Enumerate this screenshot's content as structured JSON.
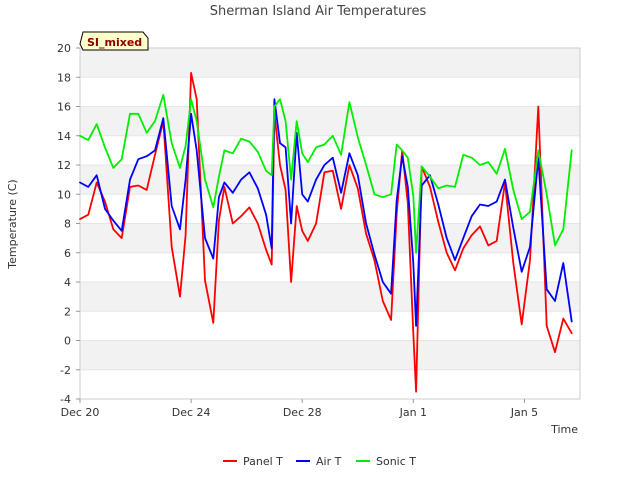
{
  "chart_data": {
    "type": "line",
    "title": "Sherman Island Air Temperatures",
    "xlabel": "Time",
    "ylabel": "Temperature (C)",
    "site_label": "SI_mixed",
    "ylim": [
      -4,
      20
    ],
    "y_ticks": [
      -4,
      -2,
      0,
      2,
      4,
      6,
      8,
      10,
      12,
      14,
      16,
      18,
      20
    ],
    "x_ticks": [
      {
        "label": "Dec 20",
        "day": 0
      },
      {
        "label": "Dec 24",
        "day": 4
      },
      {
        "label": "Dec 28",
        "day": 8
      },
      {
        "label": "Jan 1",
        "day": 12
      },
      {
        "label": "Jan 5",
        "day": 16
      }
    ],
    "xlim_days": [
      0,
      18
    ],
    "band_color": "#f2f2f2",
    "series": [
      {
        "name": "Panel T",
        "color": "#ff0000",
        "x": [
          0.0,
          0.3,
          0.6,
          0.9,
          1.2,
          1.5,
          1.8,
          2.1,
          2.4,
          2.7,
          3.0,
          3.3,
          3.6,
          3.8,
          4.0,
          4.2,
          4.5,
          4.8,
          5.0,
          5.2,
          5.5,
          5.8,
          6.1,
          6.4,
          6.7,
          6.9,
          7.0,
          7.2,
          7.4,
          7.6,
          7.8,
          8.0,
          8.2,
          8.5,
          8.8,
          9.1,
          9.4,
          9.7,
          10.0,
          10.3,
          10.6,
          10.9,
          11.2,
          11.4,
          11.6,
          11.8,
          12.0,
          12.1,
          12.3,
          12.6,
          12.9,
          13.2,
          13.5,
          13.8,
          14.1,
          14.4,
          14.7,
          15.0,
          15.3,
          15.6,
          15.9,
          16.2,
          16.5,
          16.8,
          17.1,
          17.4,
          17.7
        ],
        "y": [
          8.3,
          8.6,
          10.8,
          9.5,
          7.6,
          7.0,
          10.5,
          10.6,
          10.3,
          12.7,
          15.0,
          6.4,
          3.0,
          7.2,
          18.3,
          16.5,
          4.1,
          1.2,
          8.2,
          10.5,
          8.0,
          8.5,
          9.1,
          8.0,
          6.2,
          5.2,
          15.5,
          12.0,
          10.3,
          4.0,
          9.2,
          7.5,
          6.8,
          8.0,
          11.5,
          11.6,
          9.0,
          12.0,
          10.4,
          7.3,
          5.5,
          2.7,
          1.4,
          8.7,
          13.0,
          9.4,
          0.5,
          -3.5,
          11.9,
          10.5,
          8.1,
          6.0,
          4.8,
          6.3,
          7.2,
          7.8,
          6.5,
          6.8,
          10.8,
          5.3,
          1.1,
          5.5,
          16.0,
          1.0,
          -0.8,
          1.5,
          0.5
        ]
      },
      {
        "name": "Air T",
        "color": "#0000ff",
        "x": [
          0.0,
          0.3,
          0.6,
          0.9,
          1.2,
          1.5,
          1.8,
          2.1,
          2.4,
          2.7,
          3.0,
          3.3,
          3.6,
          3.8,
          4.0,
          4.2,
          4.5,
          4.8,
          5.0,
          5.2,
          5.5,
          5.8,
          6.1,
          6.4,
          6.7,
          6.9,
          7.0,
          7.2,
          7.4,
          7.6,
          7.8,
          8.0,
          8.2,
          8.5,
          8.8,
          9.1,
          9.4,
          9.7,
          10.0,
          10.3,
          10.6,
          10.9,
          11.2,
          11.4,
          11.6,
          11.8,
          12.0,
          12.1,
          12.3,
          12.6,
          12.9,
          13.2,
          13.5,
          13.8,
          14.1,
          14.4,
          14.7,
          15.0,
          15.3,
          15.6,
          15.9,
          16.2,
          16.5,
          16.8,
          17.1,
          17.4,
          17.7
        ],
        "y": [
          10.8,
          10.5,
          11.3,
          9.0,
          8.2,
          7.5,
          11.0,
          12.4,
          12.6,
          13.0,
          15.2,
          9.2,
          7.6,
          11.0,
          15.5,
          13.0,
          7.0,
          5.6,
          9.8,
          10.8,
          10.1,
          11.0,
          11.5,
          10.4,
          8.6,
          6.3,
          16.5,
          13.5,
          13.2,
          8.0,
          14.2,
          10.0,
          9.5,
          11.0,
          12.0,
          12.5,
          10.1,
          12.8,
          11.3,
          8.0,
          5.9,
          4.0,
          3.2,
          9.6,
          12.6,
          10.5,
          5.3,
          1.0,
          10.6,
          11.3,
          9.3,
          7.0,
          5.5,
          7.0,
          8.5,
          9.3,
          9.2,
          9.5,
          11.0,
          7.7,
          4.7,
          6.4,
          12.5,
          3.5,
          2.7,
          5.3,
          1.3
        ]
      },
      {
        "name": "Sonic T",
        "color": "#00ee00",
        "x": [
          0.0,
          0.3,
          0.6,
          0.9,
          1.2,
          1.5,
          1.8,
          2.1,
          2.4,
          2.7,
          3.0,
          3.3,
          3.6,
          3.8,
          4.0,
          4.2,
          4.5,
          4.8,
          5.0,
          5.2,
          5.5,
          5.8,
          6.1,
          6.4,
          6.7,
          6.9,
          7.0,
          7.2,
          7.4,
          7.6,
          7.8,
          8.0,
          8.2,
          8.5,
          8.8,
          9.1,
          9.4,
          9.7,
          10.0,
          10.3,
          10.6,
          10.9,
          11.2,
          11.4,
          11.6,
          11.8,
          12.0,
          12.1,
          12.3,
          12.6,
          12.9,
          13.2,
          13.5,
          13.8,
          14.1,
          14.4,
          14.7,
          15.0,
          15.3,
          15.6,
          15.9,
          16.2,
          16.5,
          16.8,
          17.1,
          17.4,
          17.7
        ],
        "y": [
          14.0,
          13.7,
          14.8,
          13.2,
          11.8,
          12.4,
          15.5,
          15.5,
          14.2,
          15.0,
          16.8,
          13.5,
          11.8,
          13.3,
          16.5,
          15.0,
          11.0,
          9.1,
          11.2,
          13.0,
          12.8,
          13.8,
          13.6,
          12.9,
          11.6,
          11.3,
          16.0,
          16.5,
          15.0,
          11.0,
          15.0,
          12.8,
          12.2,
          13.2,
          13.4,
          14.0,
          12.7,
          16.3,
          13.9,
          12.0,
          10.0,
          9.8,
          10.0,
          13.4,
          13.0,
          12.5,
          9.9,
          6.0,
          11.9,
          11.2,
          10.4,
          10.6,
          10.5,
          12.7,
          12.5,
          12.0,
          12.2,
          11.4,
          13.1,
          10.3,
          8.3,
          8.8,
          13.0,
          10.0,
          6.5,
          7.6,
          13.0
        ]
      }
    ],
    "legend": {
      "position": "bottom"
    }
  }
}
